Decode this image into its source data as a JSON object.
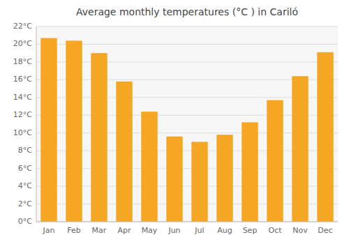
{
  "chart_data": {
    "type": "bar",
    "title": "Average monthly temperatures (°C ) in Cariló",
    "categories": [
      "Jan",
      "Feb",
      "Mar",
      "Apr",
      "May",
      "Jun",
      "Jul",
      "Aug",
      "Sep",
      "Oct",
      "Nov",
      "Dec"
    ],
    "values": [
      20.7,
      20.4,
      19.0,
      15.8,
      12.4,
      9.6,
      9.0,
      9.8,
      11.2,
      13.7,
      16.4,
      19.1
    ],
    "color": "#F5A623",
    "ylim": [
      0,
      22
    ],
    "yticks": [
      {
        "value": 0,
        "label": "0°C"
      },
      {
        "value": 2,
        "label": "2°C"
      },
      {
        "value": 4,
        "label": "4°C"
      },
      {
        "value": 6,
        "label": "6°C"
      },
      {
        "value": 8,
        "label": "8°C"
      },
      {
        "value": 10,
        "label": "10°C"
      },
      {
        "value": 12,
        "label": "12°C"
      },
      {
        "value": 14,
        "label": "14°C"
      },
      {
        "value": 16,
        "label": "16°C"
      },
      {
        "value": 18,
        "label": "18°C"
      },
      {
        "value": 20,
        "label": "20°C"
      },
      {
        "value": 22,
        "label": "22°C"
      }
    ],
    "grid": true
  }
}
